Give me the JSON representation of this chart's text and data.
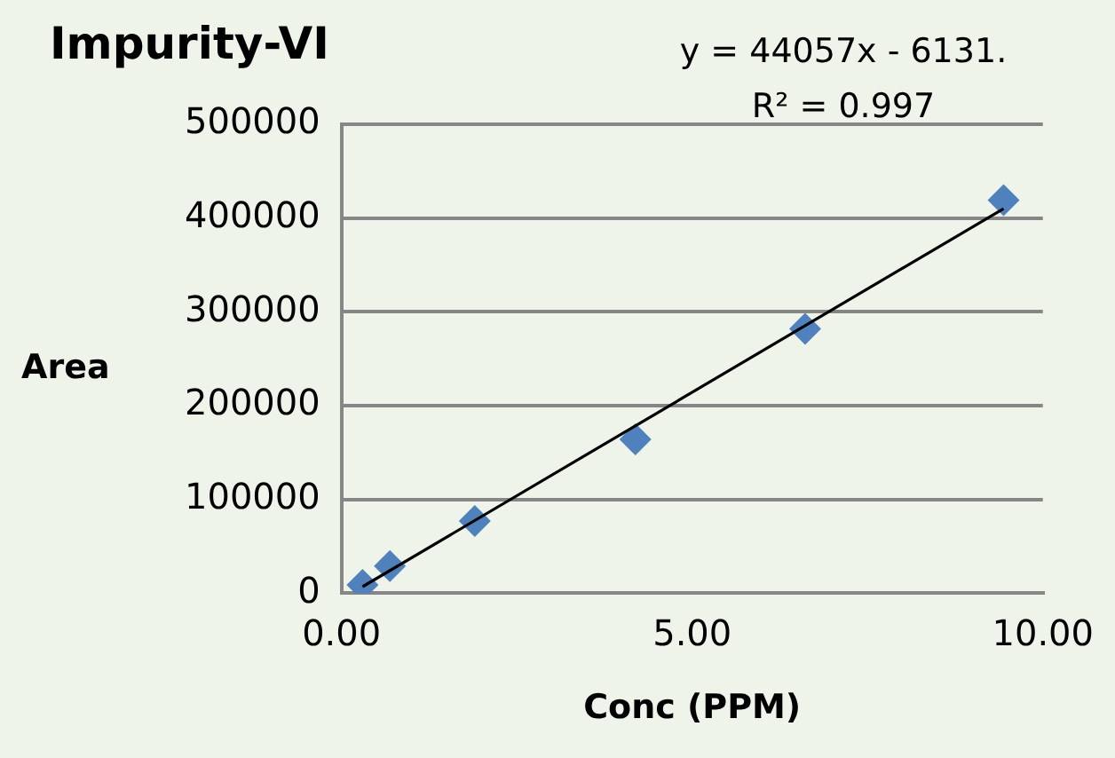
{
  "chart_data": {
    "type": "scatter",
    "title": "Impurity-VI",
    "xlabel": "Conc (PPM)",
    "ylabel": "Area",
    "annotations": [
      "y = 44057x - 6131.",
      "R² = 0.997"
    ],
    "xlim": [
      0,
      10
    ],
    "xticks": [
      {
        "value": 0,
        "label": "0.00"
      },
      {
        "value": 5,
        "label": "5.00"
      },
      {
        "value": 10,
        "label": "10.00"
      }
    ],
    "ylim": [
      0,
      500000
    ],
    "yticks": [
      0,
      100000,
      200000,
      300000,
      400000,
      500000
    ],
    "grid": "y",
    "legend": false,
    "marker": "diamond",
    "series": [
      {
        "color": "#4f81bd",
        "x": [
          0.3,
          0.69,
          1.9,
          4.19,
          6.61,
          9.44
        ],
        "values": [
          9000,
          29000,
          77000,
          164000,
          282000,
          419000
        ]
      },
      {
        "type": "line",
        "color": "#000000",
        "marker": "none",
        "x": [
          0.3,
          9.44
        ],
        "values": [
          7000,
          410000
        ]
      }
    ]
  }
}
